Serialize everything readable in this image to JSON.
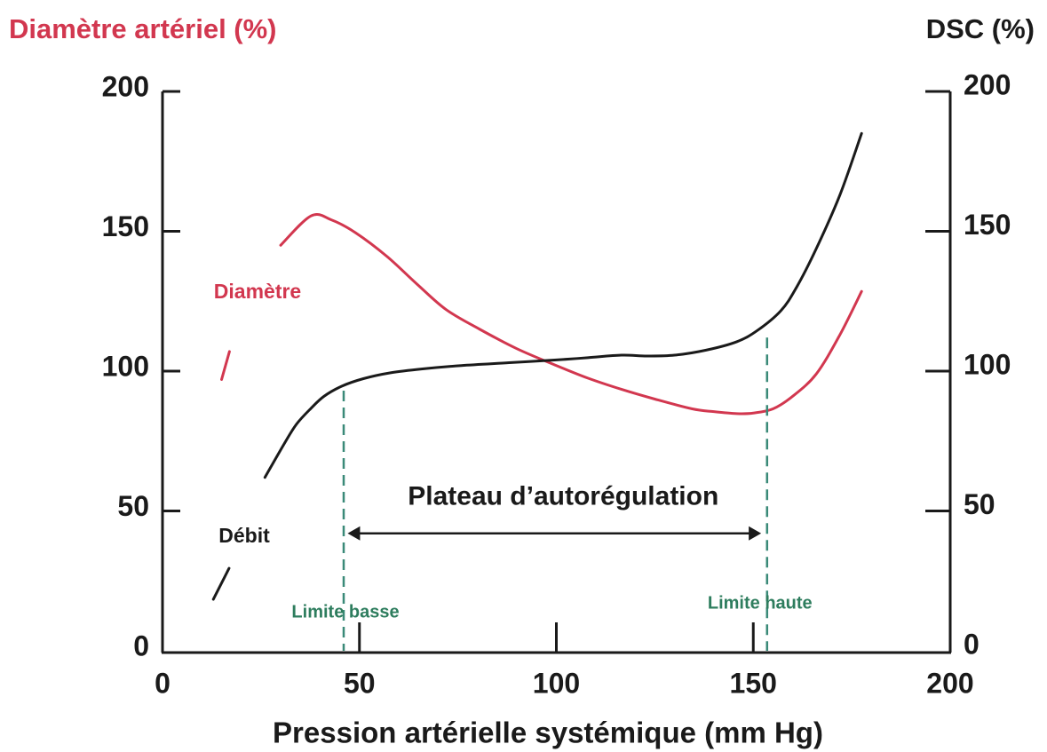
{
  "chart_data": {
    "type": "line",
    "y_label": "Diamètre artériel (%)",
    "y2_label": "DSC (%)",
    "x_label": "Pression artérielle systémique (mm Hg)",
    "xlim": [
      0,
      200
    ],
    "xticks": [
      0,
      50,
      100,
      150,
      200
    ],
    "ylim": [
      0,
      200
    ],
    "yticks": [
      0,
      50,
      100,
      150,
      200
    ],
    "y2lim": [
      0,
      200
    ],
    "y2ticks": [
      0,
      50,
      100,
      150,
      200
    ],
    "series": [
      {
        "name": "Diamètre",
        "color": "#d2374f",
        "x": [
          15,
          17,
          23,
          30,
          37.7,
          43,
          49,
          57,
          64.7,
          72,
          80.5,
          90,
          100,
          108,
          116.5,
          125,
          134.5,
          140,
          145.8,
          150,
          155,
          160,
          166,
          172,
          177.5
        ],
        "values": [
          97,
          107,
          null,
          145,
          155.5,
          154,
          149.5,
          141,
          131,
          122,
          115,
          108,
          102,
          97.5,
          93.5,
          90,
          86.5,
          85.5,
          84.8,
          85,
          86.5,
          91,
          99,
          113,
          128.5
        ]
      },
      {
        "name": "Débit",
        "color": "#1a1a1a",
        "axis": "y2",
        "x": [
          12.9,
          16.9,
          22.3,
          26,
          30.9,
          34,
          37.7,
          41,
          45.5,
          51,
          57.9,
          66,
          75.9,
          88,
          100,
          108,
          116.5,
          123,
          130,
          138,
          145.8,
          151,
          157,
          161,
          166,
          172,
          177.5
        ],
        "values": [
          18.4,
          29.5,
          null,
          62,
          74,
          81,
          86.7,
          91,
          94.6,
          97.3,
          99.4,
          100.8,
          102,
          103,
          104,
          104.8,
          105.7,
          105.4,
          105.7,
          107.5,
          110.5,
          114.5,
          121.6,
          130,
          143.8,
          163,
          185
        ]
      }
    ],
    "limits": [
      {
        "label": "Limite basse",
        "x": 46,
        "y": 93
      },
      {
        "label": "Limite haute",
        "x": 153.5,
        "y": 112
      }
    ],
    "plateau": {
      "label": "Plateau d’autorégulation",
      "x": [
        47,
        152
      ],
      "y": 42
    }
  }
}
